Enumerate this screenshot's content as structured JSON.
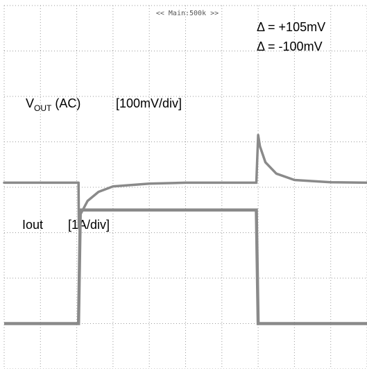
{
  "chart_data": {
    "type": "line",
    "timebase_label": "<< Main:500k >>",
    "annotations": {
      "delta_positive": "Δ = +105mV",
      "delta_negative": "Δ = -100mV"
    },
    "grid": {
      "on": true,
      "x_divisions": 10,
      "y_divisions": 8,
      "style": "dotted"
    },
    "series": [
      {
        "name_main": "V",
        "name_sub": "OUT",
        "name_suffix": " (AC)",
        "scale": "[100mV/div]",
        "unit": "mV",
        "x": [
          0,
          2.05,
          2.06,
          2.1,
          2.3,
          2.6,
          3.0,
          4.0,
          5.0,
          6.0,
          6.95,
          7.0,
          7.05,
          7.2,
          7.5,
          8.0,
          9.0,
          10.0
        ],
        "y": [
          0,
          0,
          -100,
          -70,
          -40,
          -20,
          -8,
          -2,
          0,
          0,
          0,
          105,
          80,
          45,
          20,
          6,
          1,
          0
        ]
      },
      {
        "name": "Iout",
        "scale": "[1A/div]",
        "unit": "A",
        "x": [
          0,
          2.05,
          2.1,
          6.95,
          7.0,
          10.0
        ],
        "y": [
          0,
          0,
          2.5,
          2.5,
          0,
          0
        ]
      }
    ],
    "color": "#8a8a8a"
  }
}
